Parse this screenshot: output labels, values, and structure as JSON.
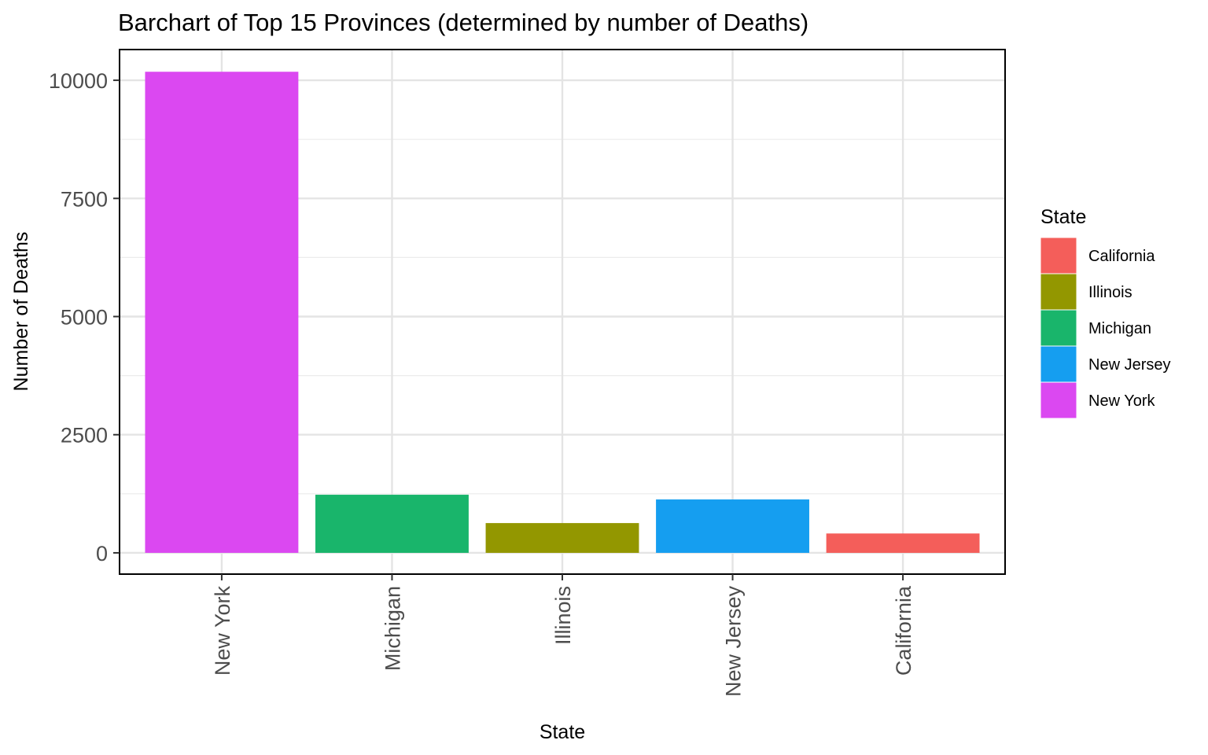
{
  "chart_data": {
    "type": "bar",
    "title": "Barchart of Top 15 Provinces (determined by number of Deaths)",
    "xlabel": "State",
    "ylabel": "Number of Deaths",
    "categories": [
      "New York",
      "Michigan",
      "Illinois",
      "New Jersey",
      "California"
    ],
    "values": [
      10180,
      1230,
      630,
      1130,
      410
    ],
    "colors": [
      "#DB48F1",
      "#19B56B",
      "#939700",
      "#159EF0",
      "#F45E5A"
    ],
    "ylim": [
      -450,
      10650
    ],
    "yticks": [
      0,
      2500,
      5000,
      7500,
      10000
    ],
    "yticklabels": [
      "0",
      "2500",
      "5000",
      "7500",
      "10000"
    ],
    "grid": true,
    "legend": {
      "title": "State",
      "placement": "right",
      "entries": [
        {
          "label": "California",
          "color": "#F45E5A"
        },
        {
          "label": "Illinois",
          "color": "#939700"
        },
        {
          "label": "Michigan",
          "color": "#19B56B"
        },
        {
          "label": "New Jersey",
          "color": "#159EF0"
        },
        {
          "label": "New York",
          "color": "#DB48F1"
        }
      ]
    }
  }
}
